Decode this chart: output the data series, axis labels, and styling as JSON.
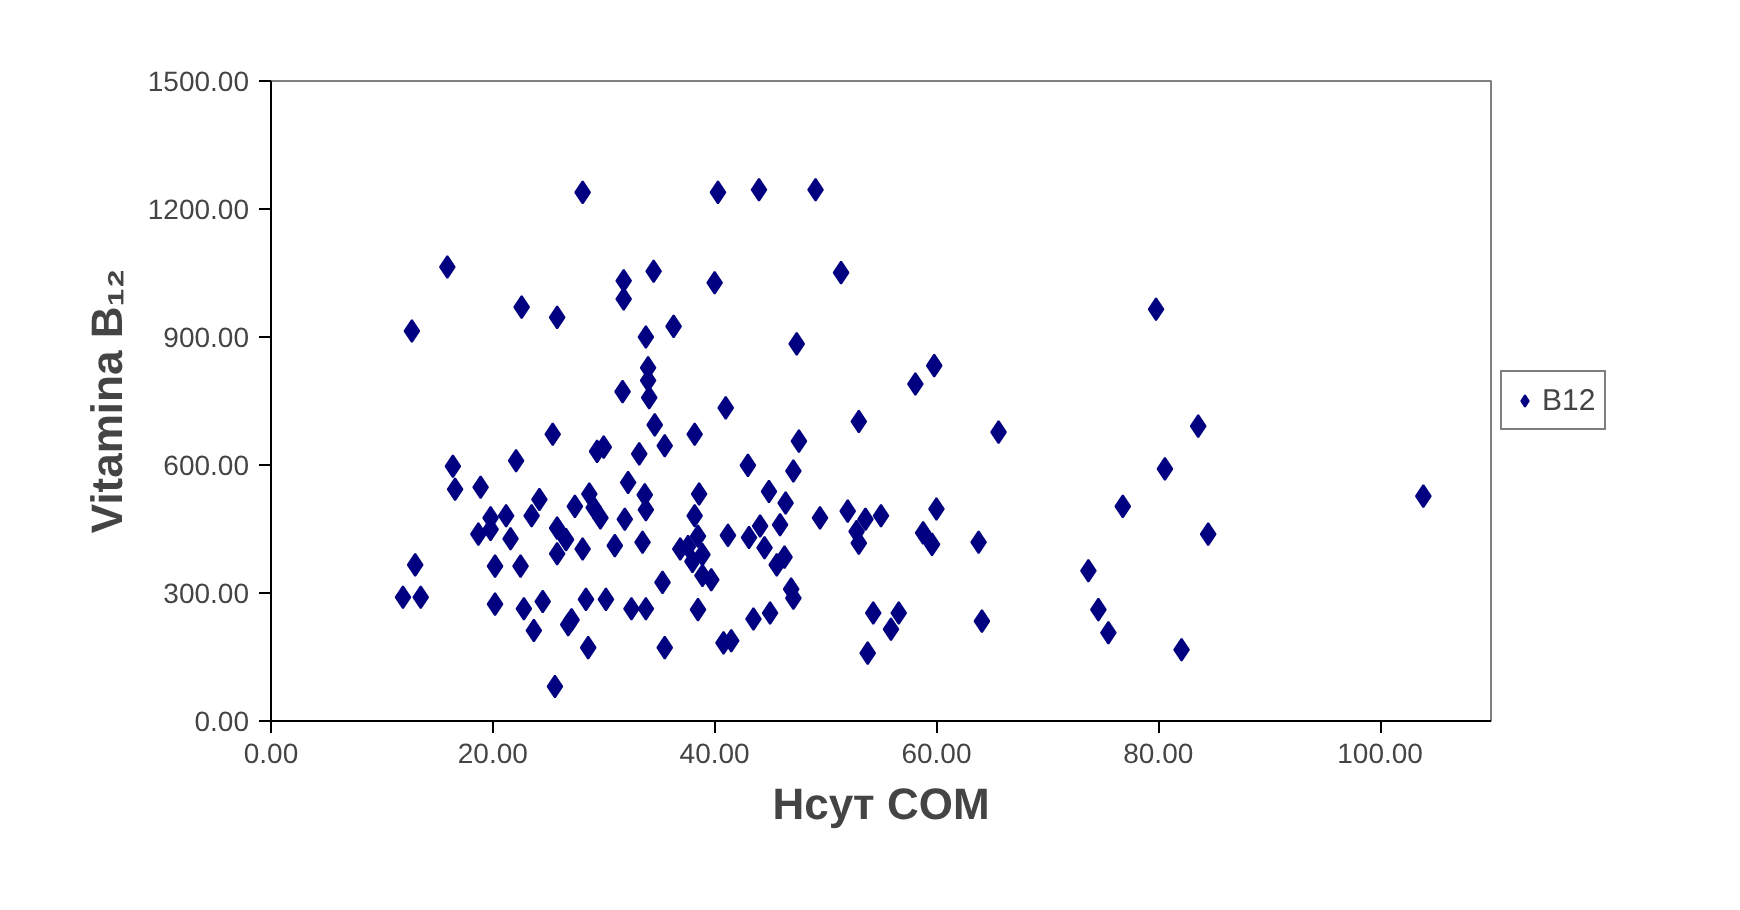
{
  "chart_data": {
    "type": "scatter",
    "xlabel": "Hcyт COM",
    "ylabel": "Vitamina B₁₂",
    "xlim": [
      0,
      110
    ],
    "ylim": [
      0,
      1500
    ],
    "xticks": [
      {
        "value": 0,
        "label": "0.00"
      },
      {
        "value": 20,
        "label": "20.00"
      },
      {
        "value": 40,
        "label": "40.00"
      },
      {
        "value": 60,
        "label": "60.00"
      },
      {
        "value": 80,
        "label": "80.00"
      },
      {
        "value": 100,
        "label": "100.00"
      }
    ],
    "yticks": [
      {
        "value": 0,
        "label": "0.00"
      },
      {
        "value": 300,
        "label": "300.00"
      },
      {
        "value": 600,
        "label": "600.00"
      },
      {
        "value": 900,
        "label": "900.00"
      },
      {
        "value": 1200,
        "label": "1200.00"
      },
      {
        "value": 1500,
        "label": "1500.00"
      }
    ],
    "grid": false,
    "legend": "right",
    "marker": "diamond",
    "series": [
      {
        "name": "B12",
        "color": "#000080",
        "x": [
          28.1,
          40.3,
          44.0,
          49.1,
          15.9,
          22.6,
          25.8,
          12.7,
          31.8,
          31.8,
          34.5,
          40.0,
          36.3,
          51.4,
          33.8,
          34.0,
          34.0,
          34.1,
          31.7,
          47.4,
          41.0,
          79.8,
          59.8,
          58.1,
          53.0,
          65.6,
          83.6,
          80.6,
          76.8,
          103.9,
          84.5,
          63.8,
          60.0,
          58.8,
          59.6,
          73.7,
          74.6,
          75.5,
          82.1,
          64.1,
          53.8,
          54.3,
          56.6,
          55.9,
          49.5,
          52.0,
          53.0,
          53.6,
          55.0,
          52.8,
          47.6,
          47.1,
          44.9,
          46.4,
          45.9,
          44.1,
          43.1,
          41.2,
          44.5,
          46.3,
          45.6,
          46.9,
          47.1,
          43.0,
          45.0,
          43.5,
          40.8,
          41.5,
          38.2,
          38.6,
          38.2,
          38.5,
          37.6,
          38.9,
          38.0,
          38.9,
          39.7,
          36.9,
          38.5,
          35.3,
          35.5,
          34.6,
          35.5,
          33.2,
          32.2,
          33.7,
          33.8,
          31.9,
          33.5,
          31.0,
          29.7,
          29.1,
          28.7,
          27.4,
          30.0,
          29.4,
          25.4,
          22.1,
          16.4,
          16.6,
          18.9,
          19.8,
          18.7,
          21.2,
          21.6,
          19.8,
          23.5,
          24.2,
          25.8,
          26.6,
          25.8,
          28.1,
          20.2,
          22.5,
          20.2,
          22.8,
          24.5,
          23.7,
          27.1,
          26.8,
          28.6,
          28.4,
          30.2,
          32.5,
          33.8,
          25.6,
          13.0,
          11.9,
          13.5
        ],
        "values": [
          1239,
          1239,
          1245,
          1245,
          1064,
          970,
          946,
          914,
          1032,
          989,
          1054,
          1027,
          925,
          1051,
          900,
          828,
          798,
          758,
          772,
          884,
          734,
          965,
          833,
          790,
          702,
          677,
          691,
          591,
          503,
          527,
          438,
          419,
          497,
          441,
          414,
          352,
          261,
          207,
          167,
          234,
          159,
          253,
          253,
          215,
          476,
          492,
          417,
          473,
          481,
          444,
          656,
          586,
          538,
          511,
          460,
          457,
          430,
          435,
          406,
          384,
          366,
          309,
          288,
          599,
          253,
          239,
          183,
          188,
          672,
          532,
          481,
          433,
          409,
          390,
          374,
          341,
          331,
          403,
          261,
          325,
          172,
          694,
          645,
          626,
          559,
          530,
          495,
          473,
          419,
          411,
          476,
          500,
          532,
          503,
          642,
          632,
          672,
          610,
          597,
          543,
          548,
          476,
          438,
          481,
          427,
          449,
          481,
          519,
          452,
          425,
          392,
          403,
          363,
          363,
          274,
          263,
          280,
          212,
          237,
          226,
          172,
          285,
          285,
          263,
          263,
          81,
          366,
          290,
          290
        ]
      }
    ]
  }
}
